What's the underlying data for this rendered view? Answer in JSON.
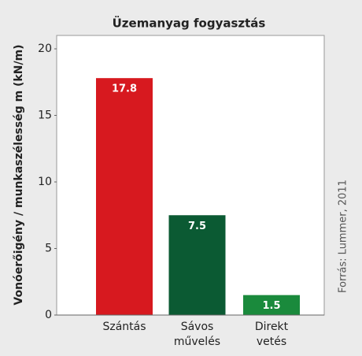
{
  "chart_data": {
    "type": "bar",
    "title": "Üzemanyag fogyasztás",
    "ylabel": "Vonóerőigény / munkaszélesség m (kN/m)",
    "source": "Forrás: Lummer, 2011",
    "categories": [
      "Szántás",
      "Sávos művelés",
      "Direkt vetés"
    ],
    "values": [
      17.8,
      7.5,
      1.5
    ],
    "colors": [
      "#d7191f",
      "#0b5a33",
      "#1a8a3c"
    ],
    "ylim": [
      0,
      20
    ],
    "yticks": [
      0,
      5,
      10,
      15,
      20
    ],
    "grid": false
  }
}
